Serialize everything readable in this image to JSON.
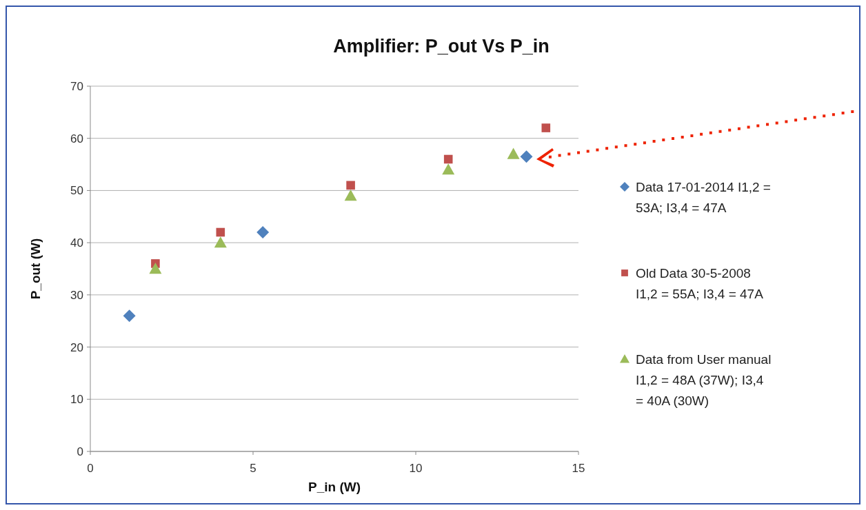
{
  "chart_data": {
    "type": "scatter",
    "title": "Amplifier: P_out Vs P_in",
    "xlabel": "P_in (W)",
    "ylabel": "P_out (W)",
    "xlim": [
      0,
      15
    ],
    "xticks": [
      0,
      5,
      10,
      15
    ],
    "ylim": [
      0,
      70
    ],
    "yticks": [
      0,
      10,
      20,
      30,
      40,
      50,
      60,
      70
    ],
    "grid": "y",
    "legend": "right",
    "series": [
      {
        "name": "Data 17-01-2014 I1,2 = 53A; I3,4 = 47A",
        "color": "#4f81bd",
        "marker": "diamond",
        "x": [
          1.2,
          5.3,
          13.4
        ],
        "values": [
          26,
          42,
          56.5
        ]
      },
      {
        "name": "Old Data 30-5-2008 I1,2 = 55A; I3,4 = 47A",
        "color": "#c0504d",
        "marker": "square",
        "x": [
          2,
          4,
          8,
          11,
          14
        ],
        "values": [
          36,
          42,
          51,
          56,
          62
        ]
      },
      {
        "name": "Data from User manual I1,2 = 48A (37W); I3,4 = 40A (30W)",
        "color": "#9bbb59",
        "marker": "triangle",
        "x": [
          2,
          4,
          8,
          11,
          13
        ],
        "values": [
          35,
          40,
          49,
          54,
          57
        ]
      }
    ]
  }
}
